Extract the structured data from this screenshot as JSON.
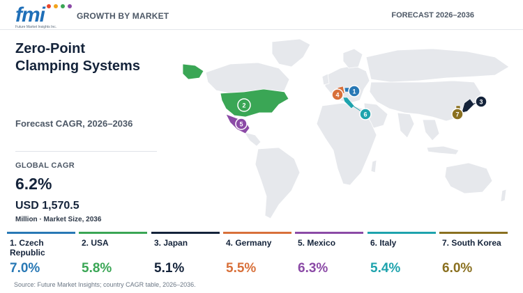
{
  "header": {
    "logo_text": "fmi",
    "logo_tagline": "Future Market Insights Inc.",
    "left_label": "GROWTH BY MARKET",
    "right_label": "FORECAST 2026–2036"
  },
  "title_line1": "Zero-Point",
  "title_line2": "Clamping Systems",
  "forecast_label": "Forecast CAGR, 2026–2036",
  "global_cagr": {
    "label": "GLOBAL CAGR",
    "value": "6.2%"
  },
  "market_size": {
    "value": "USD 1,570.5",
    "label": "Million · Market Size, 2036"
  },
  "map_markers": [
    {
      "number": "1",
      "country": "Czech Republic",
      "color": "#2878b5"
    },
    {
      "number": "2",
      "country": "USA",
      "color": "#3aa655"
    },
    {
      "number": "3",
      "country": "Japan",
      "color": "#14233a"
    },
    {
      "number": "4",
      "country": "Germany",
      "color": "#d8703a"
    },
    {
      "number": "5",
      "country": "Mexico",
      "color": "#8b4aa6"
    },
    {
      "number": "6",
      "country": "Italy",
      "color": "#1ea3ad"
    },
    {
      "number": "7",
      "country": "South Korea",
      "color": "#8a7020"
    }
  ],
  "countries": [
    {
      "label": "1. Czech Republic",
      "value": "7.0%",
      "color": "#2878b5"
    },
    {
      "label": "2. USA",
      "value": "5.8%",
      "color": "#3aa655"
    },
    {
      "label": "3. Japan",
      "value": "5.1%",
      "color": "#14233a"
    },
    {
      "label": "4. Germany",
      "value": "5.5%",
      "color": "#d8703a"
    },
    {
      "label": "5. Mexico",
      "value": "6.3%",
      "color": "#8b4aa6"
    },
    {
      "label": "6. Italy",
      "value": "5.4%",
      "color": "#1ea3ad"
    },
    {
      "label": "7. South Korea",
      "value": "6.0%",
      "color": "#8a7020"
    }
  ],
  "source": "Source: Future Market Insights; country CAGR table, 2026–2036."
}
